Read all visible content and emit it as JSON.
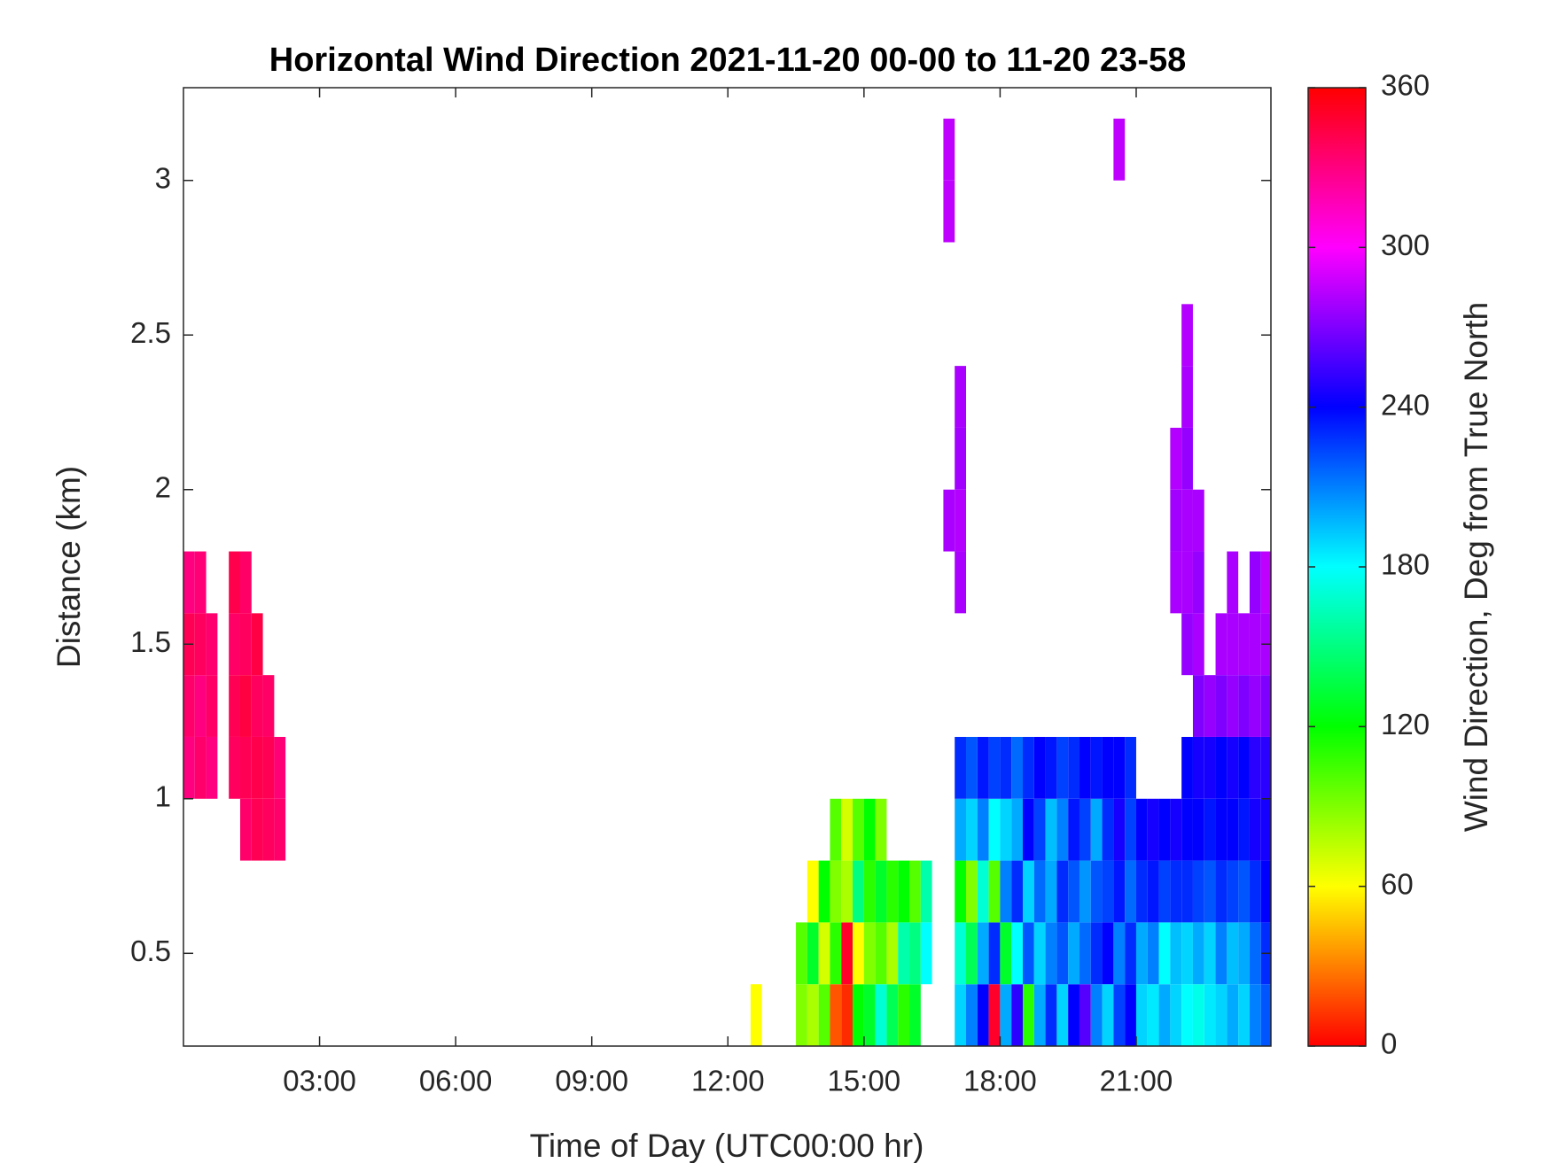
{
  "chart_data": {
    "type": "heatmap",
    "title": "Horizontal Wind Direction 2021-11-20 00-00 to 11-20 23-58",
    "x_label": "Time of Day (UTC00:00 hr)",
    "y_label": "Distance (km)",
    "colorbar_label": "Wind Direction, Deg from True North",
    "xlim": [
      0,
      23.97
    ],
    "ylim": [
      0.2,
      3.3
    ],
    "xticks": [
      {
        "value": 3,
        "label": "03:00"
      },
      {
        "value": 6,
        "label": "06:00"
      },
      {
        "value": 9,
        "label": "09:00"
      },
      {
        "value": 12,
        "label": "12:00"
      },
      {
        "value": 15,
        "label": "15:00"
      },
      {
        "value": 18,
        "label": "18:00"
      },
      {
        "value": 21,
        "label": "21:00"
      }
    ],
    "yticks": [
      0.5,
      1,
      1.5,
      2,
      2.5,
      3
    ],
    "clim": [
      0,
      360
    ],
    "cticks": [
      0,
      60,
      120,
      180,
      240,
      300,
      360
    ],
    "colormap": [
      "#ff0000",
      "#ffff00",
      "#00ff00",
      "#00ffff",
      "#0000ff",
      "#ff00ff",
      "#ff0000"
    ],
    "columns": [
      {
        "x": 0.125,
        "y": [
          1.1,
          1.3,
          1.5,
          1.7
        ],
        "values": [
          330,
          335,
          340,
          330
        ]
      },
      {
        "x": 0.375,
        "y": [
          1.1,
          1.3,
          1.5,
          1.7
        ],
        "values": [
          335,
          330,
          338,
          332
        ]
      },
      {
        "x": 0.625,
        "y": [
          1.1,
          1.3,
          1.5
        ],
        "values": [
          330,
          336,
          334
        ]
      },
      {
        "x": 1.125,
        "y": [
          1.1,
          1.3,
          1.5,
          1.7
        ],
        "values": [
          338,
          340,
          336,
          342
        ]
      },
      {
        "x": 1.375,
        "y": [
          0.9,
          1.1,
          1.3,
          1.5,
          1.7
        ],
        "values": [
          335,
          340,
          345,
          338,
          336
        ]
      },
      {
        "x": 1.625,
        "y": [
          0.9,
          1.1,
          1.3,
          1.5
        ],
        "values": [
          340,
          342,
          338,
          344
        ]
      },
      {
        "x": 1.875,
        "y": [
          0.9,
          1.1,
          1.3
        ],
        "values": [
          338,
          340,
          336
        ]
      },
      {
        "x": 2.125,
        "y": [
          0.9,
          1.1
        ],
        "values": [
          335,
          332
        ]
      },
      {
        "x": 12.625,
        "y": [
          0.3
        ],
        "values": [
          60
        ]
      },
      {
        "x": 13.625,
        "y": [
          0.3,
          0.5
        ],
        "values": [
          90,
          100
        ]
      },
      {
        "x": 13.875,
        "y": [
          0.3,
          0.5,
          0.7
        ],
        "values": [
          80,
          130,
          60
        ]
      },
      {
        "x": 14.125,
        "y": [
          0.3,
          0.5,
          0.7
        ],
        "values": [
          100,
          70,
          120
        ]
      },
      {
        "x": 14.375,
        "y": [
          0.3,
          0.5,
          0.7,
          0.9
        ],
        "values": [
          20,
          110,
          90,
          100
        ]
      },
      {
        "x": 14.625,
        "y": [
          0.3,
          0.5,
          0.7,
          0.9
        ],
        "values": [
          10,
          350,
          80,
          70
        ]
      },
      {
        "x": 14.875,
        "y": [
          0.3,
          0.5,
          0.7,
          0.9
        ],
        "values": [
          120,
          60,
          150,
          100
        ]
      },
      {
        "x": 15.125,
        "y": [
          0.3,
          0.5,
          0.7,
          0.9
        ],
        "values": [
          130,
          90,
          110,
          120
        ]
      },
      {
        "x": 15.375,
        "y": [
          0.3,
          0.5,
          0.7,
          0.9
        ],
        "values": [
          170,
          100,
          130,
          90
        ]
      },
      {
        "x": 15.625,
        "y": [
          0.3,
          0.5,
          0.7
        ],
        "values": [
          140,
          80,
          110
        ]
      },
      {
        "x": 15.875,
        "y": [
          0.3,
          0.5,
          0.7
        ],
        "values": [
          110,
          160,
          120
        ]
      },
      {
        "x": 16.125,
        "y": [
          0.3,
          0.5,
          0.7
        ],
        "values": [
          130,
          150,
          100
        ]
      },
      {
        "x": 16.375,
        "y": [
          0.5,
          0.7
        ],
        "values": [
          180,
          160
        ]
      },
      {
        "x": 16.875,
        "y": [
          1.9,
          2.9,
          3.1
        ],
        "values": [
          280,
          285,
          285
        ]
      },
      {
        "x": 17.125,
        "y": [
          0.3,
          0.5,
          0.7,
          0.9,
          1.1,
          1.7,
          1.9,
          2.1,
          2.3
        ],
        "values": [
          190,
          170,
          120,
          200,
          230,
          280,
          282,
          278,
          280
        ]
      },
      {
        "x": 17.375,
        "y": [
          0.3,
          0.5,
          0.7,
          0.9,
          1.1
        ],
        "values": [
          210,
          140,
          90,
          190,
          220
        ]
      },
      {
        "x": 17.625,
        "y": [
          0.3,
          0.5,
          0.7,
          0.9,
          1.1
        ],
        "values": [
          240,
          200,
          170,
          210,
          235
        ]
      },
      {
        "x": 17.875,
        "y": [
          0.3,
          0.5,
          0.7,
          0.9,
          1.1
        ],
        "values": [
          350,
          230,
          100,
          180,
          225
        ]
      },
      {
        "x": 18.125,
        "y": [
          0.3,
          0.5,
          0.7,
          0.9,
          1.1
        ],
        "values": [
          200,
          130,
          210,
          190,
          230
        ]
      },
      {
        "x": 18.375,
        "y": [
          0.3,
          0.5,
          0.7,
          0.9,
          1.1
        ],
        "values": [
          250,
          180,
          230,
          200,
          215
        ]
      },
      {
        "x": 18.625,
        "y": [
          0.3,
          0.5,
          0.7,
          0.9,
          1.1
        ],
        "values": [
          110,
          220,
          190,
          240,
          230
        ]
      },
      {
        "x": 18.875,
        "y": [
          0.3,
          0.5,
          0.7,
          0.9,
          1.1
        ],
        "values": [
          200,
          190,
          215,
          225,
          240
        ]
      },
      {
        "x": 19.125,
        "y": [
          0.3,
          0.5,
          0.7,
          0.9,
          1.1
        ],
        "values": [
          230,
          210,
          200,
          195,
          235
        ]
      },
      {
        "x": 19.375,
        "y": [
          0.3,
          0.5,
          0.7,
          0.9,
          1.1
        ],
        "values": [
          190,
          220,
          230,
          210,
          225
        ]
      },
      {
        "x": 19.625,
        "y": [
          0.3,
          0.5,
          0.7,
          0.9,
          1.1
        ],
        "values": [
          240,
          200,
          220,
          235,
          230
        ]
      },
      {
        "x": 19.875,
        "y": [
          0.3,
          0.5,
          0.7,
          0.9,
          1.1
        ],
        "values": [
          260,
          215,
          205,
          225,
          240
        ]
      },
      {
        "x": 20.125,
        "y": [
          0.3,
          0.5,
          0.7,
          0.9,
          1.1
        ],
        "values": [
          210,
          230,
          220,
          200,
          235
        ]
      },
      {
        "x": 20.375,
        "y": [
          0.3,
          0.5,
          0.7,
          0.9,
          1.1
        ],
        "values": [
          190,
          240,
          225,
          230,
          240
        ]
      },
      {
        "x": 20.625,
        "y": [
          0.3,
          0.5,
          0.7,
          0.9,
          1.1,
          3.1
        ],
        "values": [
          225,
          210,
          235,
          245,
          240,
          285
        ]
      },
      {
        "x": 20.875,
        "y": [
          0.3,
          0.5,
          0.7,
          0.9,
          1.1
        ],
        "values": [
          240,
          230,
          215,
          225,
          230
        ]
      },
      {
        "x": 21.125,
        "y": [
          0.3,
          0.5,
          0.7,
          0.9
        ],
        "values": [
          190,
          200,
          230,
          240
        ]
      },
      {
        "x": 21.375,
        "y": [
          0.3,
          0.5,
          0.7,
          0.9
        ],
        "values": [
          185,
          210,
          235,
          245
        ]
      },
      {
        "x": 21.625,
        "y": [
          0.3,
          0.5,
          0.7,
          0.9
        ],
        "values": [
          200,
          180,
          225,
          240
        ]
      },
      {
        "x": 21.875,
        "y": [
          0.3,
          0.5,
          0.7,
          0.9,
          1.7,
          1.9,
          2.1
        ],
        "values": [
          190,
          195,
          230,
          245,
          280,
          278,
          282
        ]
      },
      {
        "x": 22.125,
        "y": [
          0.3,
          0.5,
          0.7,
          0.9,
          1.1,
          1.5,
          1.7,
          1.9,
          2.1,
          2.3,
          2.5
        ],
        "values": [
          180,
          190,
          230,
          240,
          240,
          275,
          280,
          280,
          275,
          280,
          282
        ]
      },
      {
        "x": 22.375,
        "y": [
          0.3,
          0.5,
          0.7,
          0.9,
          1.1,
          1.3,
          1.5,
          1.7,
          1.9
        ],
        "values": [
          175,
          200,
          225,
          240,
          245,
          270,
          280,
          275,
          280
        ]
      },
      {
        "x": 22.625,
        "y": [
          0.3,
          0.5,
          0.7,
          0.9,
          1.1,
          1.3
        ],
        "values": [
          185,
          190,
          220,
          235,
          245,
          275
        ]
      },
      {
        "x": 22.875,
        "y": [
          0.3,
          0.5,
          0.7,
          0.9,
          1.1,
          1.3,
          1.5
        ],
        "values": [
          190,
          210,
          230,
          240,
          240,
          270,
          280
        ]
      },
      {
        "x": 23.125,
        "y": [
          0.3,
          0.5,
          0.7,
          0.9,
          1.1,
          1.3,
          1.5,
          1.7
        ],
        "values": [
          200,
          195,
          225,
          240,
          245,
          275,
          280,
          280
        ]
      },
      {
        "x": 23.375,
        "y": [
          0.3,
          0.5,
          0.7,
          0.9,
          1.1,
          1.3,
          1.5
        ],
        "values": [
          190,
          200,
          220,
          235,
          240,
          270,
          280
        ]
      },
      {
        "x": 23.625,
        "y": [
          0.3,
          0.5,
          0.7,
          0.9,
          1.1,
          1.3,
          1.5,
          1.7
        ],
        "values": [
          210,
          215,
          230,
          245,
          250,
          275,
          280,
          275
        ]
      },
      {
        "x": 23.875,
        "y": [
          0.3,
          0.5,
          0.7,
          0.9,
          1.1,
          1.3,
          1.5,
          1.7
        ],
        "values": [
          220,
          230,
          240,
          245,
          250,
          270,
          280,
          285
        ]
      }
    ]
  }
}
